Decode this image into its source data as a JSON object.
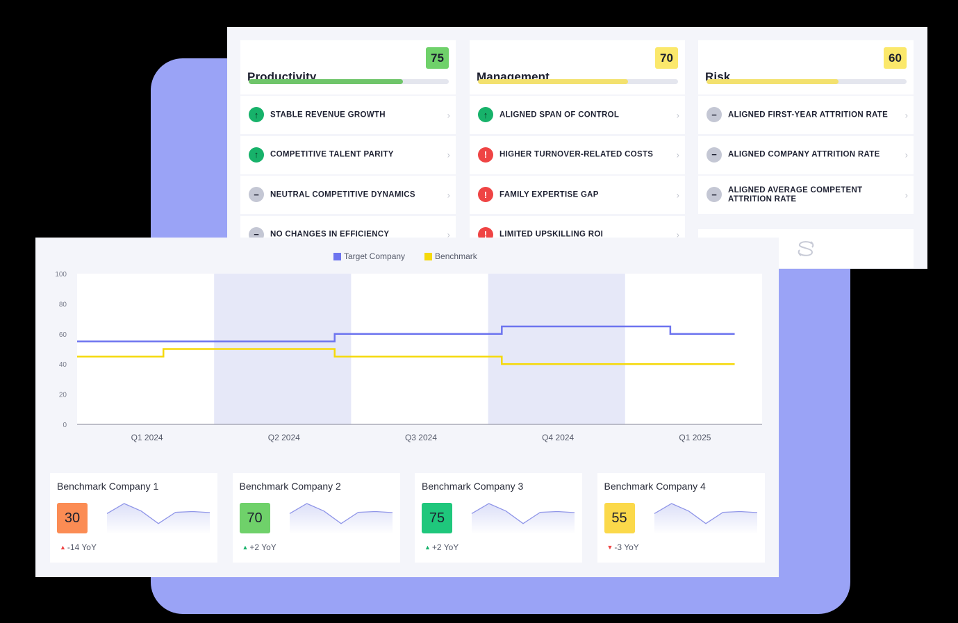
{
  "colors": {
    "backdrop": "#9aa3f6",
    "target_company": "#6d74ef",
    "benchmark": "#f5d90a",
    "score_green": "#6fd16a",
    "score_yellow": "#fbe86b",
    "score_orange": "#fb8c54",
    "score_emerald": "#1fc77c",
    "band_shade": "#e6e8f8"
  },
  "scorecard": {
    "columns": [
      {
        "title": "Productivity",
        "score": "75",
        "score_color": "#6fd16a",
        "progress": 0.77,
        "bar_color": "#6fc56a",
        "items": [
          {
            "label": "STABLE REVENUE GROWTH",
            "status": "up",
            "icon": "arrow-up-icon"
          },
          {
            "label": "COMPETITIVE TALENT PARITY",
            "status": "up",
            "icon": "arrow-up-icon"
          },
          {
            "label": "NEUTRAL COMPETITIVE DYNAMICS",
            "status": "neutral",
            "icon": "minus-icon"
          },
          {
            "label": "NO CHANGES IN EFFICIENCY",
            "status": "neutral",
            "icon": "minus-icon"
          }
        ]
      },
      {
        "title": "Management",
        "score": "70",
        "score_color": "#fbe86b",
        "progress": 0.75,
        "bar_color": "#f3e16e",
        "items": [
          {
            "label": "ALIGNED SPAN OF CONTROL",
            "status": "up",
            "icon": "arrow-up-icon"
          },
          {
            "label": "HIGHER TURNOVER-RELATED COSTS",
            "status": "alert",
            "icon": "exclamation-icon"
          },
          {
            "label": "FAMILY EXPERTISE GAP",
            "status": "alert",
            "icon": "exclamation-icon"
          },
          {
            "label": "LIMITED UPSKILLING ROI",
            "status": "alert",
            "icon": "exclamation-icon"
          }
        ]
      },
      {
        "title": "Risk",
        "score": "60",
        "score_color": "#fbe86b",
        "progress": 0.66,
        "bar_color": "#f3e16e",
        "items": [
          {
            "label": "ALIGNED FIRST-YEAR ATTRITION RATE",
            "status": "neutral",
            "icon": "minus-icon"
          },
          {
            "label": "ALIGNED COMPANY ATTRITION RATE",
            "status": "neutral",
            "icon": "minus-icon"
          },
          {
            "label": "ALIGNED AVERAGE COMPETENT ATTRITION RATE",
            "status": "neutral",
            "icon": "minus-icon"
          }
        ],
        "logo_icon": "brand-s-logo-icon"
      }
    ],
    "chevron_icon": "chevron-right-icon"
  },
  "chart_data": {
    "type": "line",
    "step": true,
    "categories": [
      "Q1 2024",
      "Q2 2024",
      "Q3 2024",
      "Q4 2024",
      "Q1 2025"
    ],
    "shaded_categories": [
      "Q2 2024",
      "Q4 2024"
    ],
    "ylim": [
      0,
      100
    ],
    "yticks": [
      0,
      20,
      40,
      60,
      80,
      100
    ],
    "grid": false,
    "legend_position": "top-center",
    "series": [
      {
        "name": "Target Company",
        "color": "#6d74ef",
        "steps": [
          [
            0,
            55
          ],
          [
            1.88,
            60
          ],
          [
            3.1,
            65
          ],
          [
            4.33,
            60
          ],
          [
            4.8,
            60
          ]
        ]
      },
      {
        "name": "Benchmark",
        "color": "#f5d90a",
        "steps": [
          [
            0,
            45
          ],
          [
            0.63,
            50
          ],
          [
            1.88,
            45
          ],
          [
            3.1,
            40
          ],
          [
            4.8,
            40
          ]
        ]
      }
    ]
  },
  "benchmarks": [
    {
      "name": "Benchmark Company 1",
      "score": "30",
      "score_color": "#fb8c54",
      "yoy": "-14 YoY",
      "trend": "up",
      "trend_color": "#ef4444"
    },
    {
      "name": "Benchmark Company 2",
      "score": "70",
      "score_color": "#6fd16a",
      "yoy": "+2 YoY",
      "trend": "up",
      "trend_color": "#17b26a"
    },
    {
      "name": "Benchmark Company 3",
      "score": "75",
      "score_color": "#1fc77c",
      "yoy": "+2 YoY",
      "trend": "up",
      "trend_color": "#17b26a"
    },
    {
      "name": "Benchmark Company 4",
      "score": "55",
      "score_color": "#fbd94a",
      "yoy": "-3 YoY",
      "trend": "down",
      "trend_color": "#ef4444"
    }
  ],
  "sparkline": {
    "values": [
      60,
      100,
      70,
      20,
      65,
      68,
      64
    ],
    "color": "#8f95e8"
  }
}
